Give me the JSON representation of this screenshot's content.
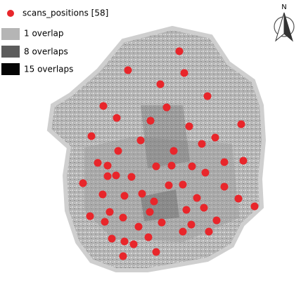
{
  "legend": {
    "items": [
      {
        "label": "scans_positions [58]"
      },
      {
        "label": "1 overlap"
      },
      {
        "label": "8 overlaps"
      },
      {
        "label": "15 overlaps"
      }
    ]
  },
  "north_arrow": {
    "label": "N"
  }
}
